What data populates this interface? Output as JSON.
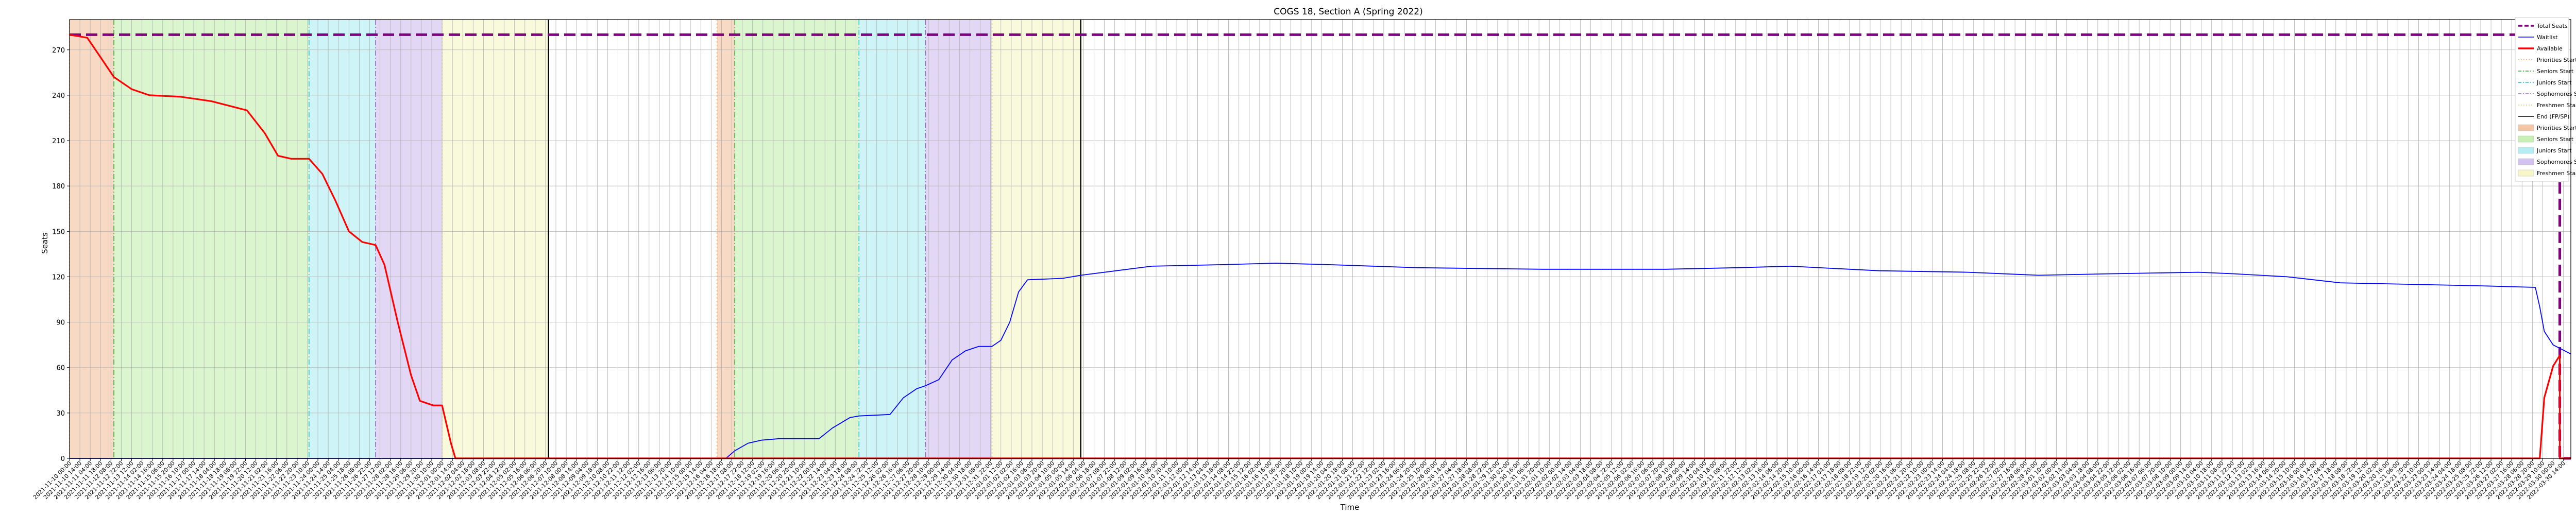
{
  "chart_data": {
    "type": "line",
    "title": "COGS 18, Section A (Spring 2022)",
    "xlabel": "Time",
    "ylabel": "Seats",
    "ylim": [
      0,
      290
    ],
    "yticks": [
      0,
      30,
      60,
      90,
      120,
      150,
      180,
      210,
      240,
      270
    ],
    "grid": true,
    "legend_position": "outside-right",
    "x_start": "2021-11-10 00:00",
    "x_end": "2022-03-31 00:00",
    "x_tick_step_hours": 14,
    "x_tick_format": "YYYY-MM-DD HH:MM",
    "legend": [
      {
        "label": "Total Seats",
        "kind": "line",
        "color": "#800080",
        "style": "dashed-thick"
      },
      {
        "label": "Waitlist",
        "kind": "line",
        "color": "#0000ff",
        "style": "solid"
      },
      {
        "label": "Available",
        "kind": "line",
        "color": "#ff0000",
        "style": "solid-thick"
      },
      {
        "label": "Priorities Start",
        "kind": "line",
        "color": "#f4a460",
        "style": "dotted"
      },
      {
        "label": "Seniors Start",
        "kind": "line",
        "color": "#2ca02c",
        "style": "dashdot"
      },
      {
        "label": "Juniors Start",
        "kind": "line",
        "color": "#17becf",
        "style": "dashdot"
      },
      {
        "label": "Sophomores Start",
        "kind": "line",
        "color": "#9467bd",
        "style": "dashdot"
      },
      {
        "label": "Freshmen Start",
        "kind": "line",
        "color": "#d4d46a",
        "style": "dotted"
      },
      {
        "label": "End (FP/SP)",
        "kind": "line",
        "color": "#000000",
        "style": "solid"
      },
      {
        "label": "Priorities Start",
        "kind": "patch",
        "color": "#f5c6a5"
      },
      {
        "label": "Seniors Start",
        "kind": "patch",
        "color": "#c8f0b4"
      },
      {
        "label": "Juniors Start",
        "kind": "patch",
        "color": "#b4eef2"
      },
      {
        "label": "Sophomores Start",
        "kind": "patch",
        "color": "#d2c2f0"
      },
      {
        "label": "Freshmen Start",
        "kind": "patch",
        "color": "#f6f6c8"
      }
    ],
    "periods": [
      {
        "name": "Priorities Start",
        "start": "2021-11-10 00:00",
        "end": "2021-11-12 12:00",
        "color": "#f5c6a5"
      },
      {
        "name": "Seniors Start",
        "start": "2021-11-12 12:00",
        "end": "2021-11-23 12:00",
        "color": "#c8f0b4"
      },
      {
        "name": "Juniors Start",
        "start": "2021-11-23 12:00",
        "end": "2021-11-27 06:00",
        "color": "#b4eef2"
      },
      {
        "name": "Sophomores Start",
        "start": "2021-11-27 06:00",
        "end": "2021-12-01 00:00",
        "color": "#d2c2f0"
      },
      {
        "name": "Freshmen Start",
        "start": "2021-12-01 00:00",
        "end": "2021-12-07 00:00",
        "color": "#f6f6c8"
      },
      {
        "name": "Priorities Start",
        "start": "2021-12-16 12:00",
        "end": "2021-12-17 12:00",
        "color": "#f5c6a5"
      },
      {
        "name": "Seniors Start",
        "start": "2021-12-17 12:00",
        "end": "2021-12-24 12:00",
        "color": "#c8f0b4"
      },
      {
        "name": "Juniors Start",
        "start": "2021-12-24 12:00",
        "end": "2021-12-28 06:00",
        "color": "#b4eef2"
      },
      {
        "name": "Sophomores Start",
        "start": "2021-12-28 06:00",
        "end": "2022-01-01 00:00",
        "color": "#d2c2f0"
      },
      {
        "name": "Freshmen Start",
        "start": "2022-01-01 00:00",
        "end": "2022-01-06 00:00",
        "color": "#f6f6c8"
      }
    ],
    "end_lines": [
      "2021-12-07 00:00",
      "2022-01-06 00:00"
    ],
    "series": [
      {
        "name": "Total Seats",
        "color": "#800080",
        "points": [
          [
            "2021-11-10 00:00",
            280
          ],
          [
            "2022-03-29 12:00",
            280
          ],
          [
            "2022-03-29 12:00",
            244
          ],
          [
            "2022-03-30 09:00",
            244
          ],
          [
            "2022-03-30 09:00",
            0
          ],
          [
            "2022-03-31 00:00",
            0
          ]
        ]
      },
      {
        "name": "Waitlist",
        "color": "#0000ff",
        "points": [
          [
            "2021-11-10 00:00",
            0
          ],
          [
            "2021-12-17 00:00",
            0
          ],
          [
            "2021-12-17 12:00",
            5
          ],
          [
            "2021-12-18 06:00",
            10
          ],
          [
            "2021-12-19 00:00",
            12
          ],
          [
            "2021-12-20 00:00",
            13
          ],
          [
            "2021-12-22 06:00",
            13
          ],
          [
            "2021-12-23 00:00",
            20
          ],
          [
            "2021-12-24 00:00",
            27
          ],
          [
            "2021-12-24 12:00",
            28
          ],
          [
            "2021-12-26 06:00",
            29
          ],
          [
            "2021-12-27 00:00",
            40
          ],
          [
            "2021-12-27 18:00",
            46
          ],
          [
            "2021-12-28 06:00",
            48
          ],
          [
            "2021-12-29 00:00",
            52
          ],
          [
            "2021-12-29 18:00",
            65
          ],
          [
            "2021-12-30 12:00",
            71
          ],
          [
            "2021-12-31 06:00",
            74
          ],
          [
            "2022-01-01 00:00",
            74
          ],
          [
            "2022-01-01 12:00",
            78
          ],
          [
            "2022-01-02 00:00",
            90
          ],
          [
            "2022-01-02 12:00",
            110
          ],
          [
            "2022-01-03 00:00",
            118
          ],
          [
            "2022-01-05 00:00",
            119
          ],
          [
            "2022-01-06 00:00",
            121
          ],
          [
            "2022-01-08 00:00",
            124
          ],
          [
            "2022-01-10 00:00",
            127
          ],
          [
            "2022-01-14 00:00",
            128
          ],
          [
            "2022-01-17 00:00",
            129
          ],
          [
            "2022-01-20 00:00",
            128
          ],
          [
            "2022-01-25 00:00",
            126
          ],
          [
            "2022-02-01 00:00",
            125
          ],
          [
            "2022-02-08 00:00",
            125
          ],
          [
            "2022-02-12 00:00",
            126
          ],
          [
            "2022-02-15 00:00",
            127
          ],
          [
            "2022-02-20 00:00",
            124
          ],
          [
            "2022-02-25 00:00",
            123
          ],
          [
            "2022-03-01 00:00",
            121
          ],
          [
            "2022-03-05 00:00",
            122
          ],
          [
            "2022-03-10 00:00",
            123
          ],
          [
            "2022-03-12 00:00",
            122
          ],
          [
            "2022-03-15 00:00",
            120
          ],
          [
            "2022-03-18 00:00",
            116
          ],
          [
            "2022-03-22 00:00",
            115
          ],
          [
            "2022-03-26 00:00",
            114
          ],
          [
            "2022-03-29 00:00",
            113
          ],
          [
            "2022-03-29 06:00",
            100
          ],
          [
            "2022-03-29 12:00",
            84
          ],
          [
            "2022-03-30 00:00",
            75
          ],
          [
            "2022-03-31 00:00",
            69
          ]
        ]
      },
      {
        "name": "Available",
        "color": "#ff0000",
        "points": [
          [
            "2021-11-10 00:00",
            280
          ],
          [
            "2021-11-11 00:00",
            278
          ],
          [
            "2021-11-11 18:00",
            265
          ],
          [
            "2021-11-12 12:00",
            252
          ],
          [
            "2021-11-13 12:00",
            244
          ],
          [
            "2021-11-14 12:00",
            240
          ],
          [
            "2021-11-16 06:00",
            239
          ],
          [
            "2021-11-18 00:00",
            236
          ],
          [
            "2021-11-20 00:00",
            230
          ],
          [
            "2021-11-21 00:00",
            215
          ],
          [
            "2021-11-21 18:00",
            200
          ],
          [
            "2021-11-22 12:00",
            198
          ],
          [
            "2021-11-23 12:00",
            198
          ],
          [
            "2021-11-24 06:00",
            188
          ],
          [
            "2021-11-25 00:00",
            170
          ],
          [
            "2021-11-25 18:00",
            150
          ],
          [
            "2021-11-26 12:00",
            143
          ],
          [
            "2021-11-27 06:00",
            141
          ],
          [
            "2021-11-27 18:00",
            128
          ],
          [
            "2021-11-28 12:00",
            90
          ],
          [
            "2021-11-29 06:00",
            55
          ],
          [
            "2021-11-29 18:00",
            38
          ],
          [
            "2021-11-30 12:00",
            35
          ],
          [
            "2021-12-01 00:00",
            35
          ],
          [
            "2021-12-01 12:00",
            10
          ],
          [
            "2021-12-01 18:00",
            0
          ],
          [
            "2022-03-29 06:00",
            0
          ],
          [
            "2022-03-29 12:00",
            40
          ],
          [
            "2022-03-30 00:00",
            61
          ],
          [
            "2022-03-30 09:00",
            68
          ],
          [
            "2022-03-30 09:00",
            0
          ],
          [
            "2022-03-31 00:00",
            0
          ]
        ]
      }
    ]
  }
}
